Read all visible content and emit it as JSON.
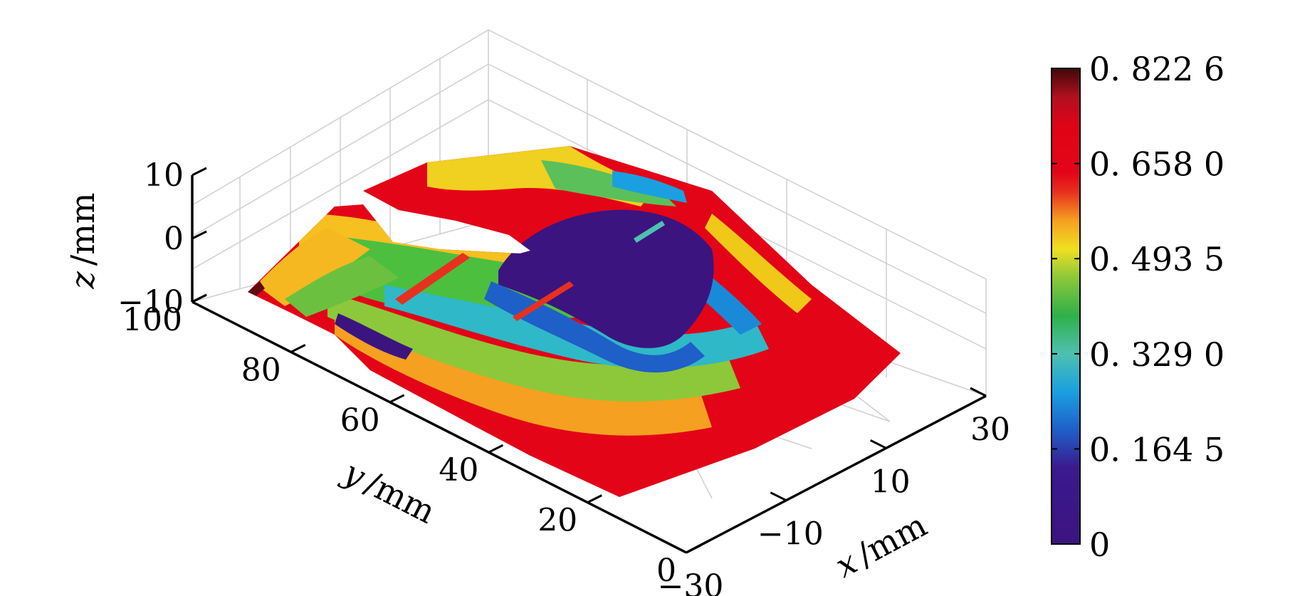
{
  "chart_data": {
    "type": "surface3d",
    "title": "",
    "x_axis": {
      "label_var": "x",
      "label_unit": "/mm",
      "ticks": [
        -30,
        -10,
        10,
        30
      ],
      "tick_labels": [
        "−30",
        "−10",
        "10",
        "30"
      ],
      "range": [
        -30,
        30
      ]
    },
    "y_axis": {
      "label_var": "y",
      "label_unit": "/mm",
      "ticks": [
        0,
        20,
        40,
        60,
        80,
        100
      ],
      "tick_labels": [
        "0",
        "20",
        "40",
        "60",
        "80",
        "100"
      ],
      "range": [
        0,
        100
      ]
    },
    "z_axis": {
      "label_var": "z",
      "label_unit": "/mm",
      "ticks": [
        -10,
        0,
        10
      ],
      "tick_labels": [
        "−10",
        "0",
        "10"
      ],
      "range": [
        -10,
        10
      ]
    },
    "colorbar": {
      "range": [
        0,
        0.8226
      ],
      "ticks": [
        0,
        0.1645,
        0.329,
        0.4935,
        0.658,
        0.8226
      ],
      "tick_labels": [
        "0",
        "0. 164 5",
        "0. 329 0",
        "0. 493 5",
        "0. 658 0",
        "0. 822 6"
      ],
      "colors": [
        "#3b1480",
        "#3a1a8e",
        "#1f5fc8",
        "#1aa0e0",
        "#4fc0b0",
        "#2fb04a",
        "#8cc83a",
        "#f0e020",
        "#f5a020",
        "#e8301e",
        "#e30418",
        "#e00316",
        "#b01020",
        "#400808"
      ]
    },
    "grid": true,
    "legend": "colorbar-right"
  }
}
